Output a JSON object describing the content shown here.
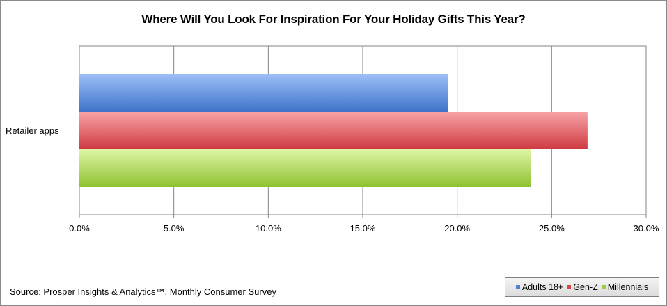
{
  "chart_data": {
    "type": "bar",
    "orientation": "horizontal",
    "title": "Where Will You Look For Inspiration For Your Holiday Gifts This Year?",
    "categories": [
      "Retailer apps"
    ],
    "series": [
      {
        "name": "Adults 18+",
        "values": [
          19.5
        ],
        "color": "#4f81d6"
      },
      {
        "name": "Gen-Z",
        "values": [
          26.9
        ],
        "color": "#d9434a"
      },
      {
        "name": "Millennials",
        "values": [
          23.9
        ],
        "color": "#9bcd3c"
      }
    ],
    "xlim": [
      0,
      30
    ],
    "x_ticks": [
      "0.0%",
      "5.0%",
      "10.0%",
      "15.0%",
      "20.0%",
      "25.0%",
      "30.0%"
    ],
    "grid": "vertical",
    "legend_position": "bottom-right"
  },
  "source": "Source: Prosper Insights & Analytics™, Monthly Consumer Survey"
}
